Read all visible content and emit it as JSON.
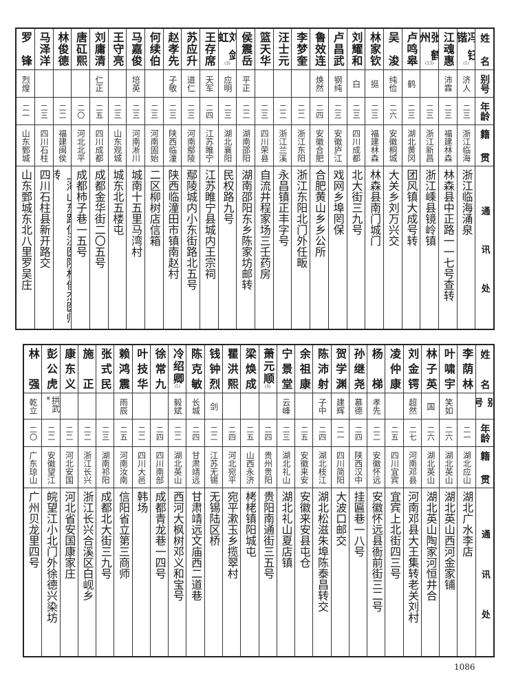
{
  "header": {
    "name": "姓名",
    "alias": "别号",
    "age": "年龄",
    "origin": "籍贯",
    "address": "通讯处"
  },
  "top_table": {
    "rows": [
      {
        "name": "冯钰锴",
        "note": "(1)",
        "alias": "济人",
        "age": "二三",
        "origin": "浙江临海",
        "address": "浙江临海涌泉"
      },
      {
        "name": "江魂惠",
        "alias": "沛霖",
        "age": "二三",
        "origin": "福建林森",
        "address": "林森县中正路一一七号查转"
      },
      {
        "name": "张鹤州",
        "note": "(13)",
        "alias": "",
        "age": "二三",
        "origin": "浙江新昌",
        "address": "浙江嵊县镜岭镇"
      },
      {
        "name": "卢鸣皋",
        "alias": "鹤",
        "age": "二三",
        "origin": "湖北黄冈",
        "address": "团风镇大成号转"
      },
      {
        "name": "吴浚",
        "alias": "纯俭",
        "age": "二六",
        "origin": "安徽桐城",
        "address": "大关乡刘万兴交"
      },
      {
        "name": "林家钦",
        "alias": "挺",
        "age": "二三",
        "origin": "福建林森",
        "address": "林森县南门城门"
      },
      {
        "name": "刘耀和",
        "alias": "白",
        "age": "二三",
        "origin": "四川成都",
        "address": "北大街三九号"
      },
      {
        "name": "卢昌武",
        "alias": "钢纯",
        "age": "二三",
        "origin": "安徽庐江",
        "address": "戏网乡埠罔保"
      },
      {
        "name": "鲁效连",
        "alias": "焕然",
        "age": "二四",
        "origin": "安徽合肥",
        "address": "合肥黄山乡乡公所"
      },
      {
        "name": "李梦奎",
        "alias": "",
        "age": "二二",
        "origin": "浙江东阳",
        "address": "浙江东阳北门外任畈"
      },
      {
        "name": "汪士元",
        "alias": "",
        "age": "二二",
        "origin": "浙江兰溪",
        "address": "永昌镇正丰字号"
      },
      {
        "name": "篮天华",
        "alias": "",
        "age": "二三",
        "origin": "四川荣县",
        "address": "自流井程家场三壬药房"
      },
      {
        "name": "侯震岳",
        "alias": "平正",
        "age": "二二",
        "origin": "湖南邵阳",
        "address": "湖南邵阳东乡陈家坊邮转"
      },
      {
        "name": "刘剑虹",
        "note": "(3)",
        "alias": "应明",
        "age": "二三",
        "origin": "湖北襄阳",
        "address": "民权路九号"
      },
      {
        "name": "王存席",
        "alias": "天军",
        "age": "二四",
        "origin": "江苏睢宁",
        "address": "江苏睢宁县城内王宗祠"
      },
      {
        "name": "苏应升",
        "alias": "道仁",
        "age": "二三",
        "origin": "河南鄢陵",
        "address": "鄢陵城内小东街路北五号"
      },
      {
        "name": "赵孝先",
        "alias": "子敬",
        "age": "二三",
        "origin": "陕西临潼",
        "address": "陕西临潼田市镇南赵村"
      },
      {
        "name": "何续伯",
        "alias": "",
        "age": "二三",
        "origin": "河南固始",
        "address": "二区柳树店信箱"
      },
      {
        "name": "马嘉俊",
        "alias": "培英",
        "age": "二三",
        "origin": "河南淅川",
        "address": "城南十五里马湾村"
      },
      {
        "name": "王守亮",
        "alias": "",
        "age": "二三",
        "origin": "山东观城",
        "address": "城东北五楼屯"
      },
      {
        "name": "刘庸清",
        "alias": "仁正",
        "age": "二五",
        "origin": "四川成都",
        "address": "成都金华街二〇五号"
      },
      {
        "name": "唐矼熙",
        "alias": "",
        "age": "二〇",
        "origin": "河北北平",
        "address": "成都柿子巷一五号"
      },
      {
        "name": "林俊德",
        "alias": "",
        "age": "二二",
        "origin": "福建闽侯",
        "address": "上海山东路仁济医院林俊杰医师转"
      },
      {
        "name": "马泽洋",
        "alias": "",
        "age": "二三",
        "origin": "四川石柱",
        "address": "四川石柱县新开路交"
      },
      {
        "name": "罗锋",
        "alias": "烈煌",
        "age": "二一",
        "origin": "山东鄄城",
        "address": "山东鄄城东北八里罗吴庄"
      }
    ]
  },
  "bottom_table": {
    "rows": [
      {
        "name": "李荫林",
        "alias": "",
        "age": "二一",
        "origin": "湖北应山",
        "address": "湖北广水李店"
      },
      {
        "name": "叶啸宇",
        "alias": "笑如",
        "age": "二六",
        "origin": "湖北英山",
        "address": "湖北英山西河金家铺"
      },
      {
        "name": "林子英",
        "alias": "国",
        "age": "二六",
        "origin": "湖北英山",
        "address": "湖北英山陶家河恒井合"
      },
      {
        "name": "刘金锷",
        "alias": "超然",
        "age": "二七",
        "origin": "河南邓县",
        "address": "河南邓县大王集转老关刘村"
      },
      {
        "name": "凌仲康",
        "alias": "",
        "age": "二五",
        "origin": "四川宜宾",
        "address": "宜宾上北街四三号"
      },
      {
        "name": "杨梯",
        "alias": "孝先",
        "age": "二二",
        "origin": "安徽怀远",
        "address": "安徽怀远县衙前街三二号"
      },
      {
        "name": "孙继尧",
        "alias": "慕德",
        "age": "二四",
        "origin": "陕西汉中",
        "address": "挂匾巷一八号"
      },
      {
        "name": "贺学渊",
        "alias": "建辉",
        "age": "二一",
        "origin": "四川简阳",
        "address": "大波口邮交"
      },
      {
        "name": "陈沛射",
        "alias": "子中",
        "age": "二四",
        "origin": "湖北枝江",
        "address": "湖北松滋朱埠陈泰昌转交"
      },
      {
        "name": "余祖康",
        "alias": "",
        "age": "二五",
        "origin": "安徽来安",
        "address": "安徽来安县屯仓"
      },
      {
        "name": "宁景堂",
        "alias": "云峰",
        "age": "二三",
        "origin": "湖北礼山",
        "address": "湖北礼山夏店镇"
      },
      {
        "name": "萧元顺",
        "note": "(8)",
        "alias": "",
        "age": "二四",
        "origin": "贵州贵阳",
        "address": "贵阳南通街三五号"
      },
      {
        "name": "梁焕成",
        "alias": "",
        "age": "二五",
        "origin": "山西永济",
        "address": "栲栳镇阳城屯"
      },
      {
        "name": "瞿洪熙",
        "alias": "",
        "age": "二四",
        "origin": "河北宛平",
        "address": "宛平漱玉乡揽翠村"
      },
      {
        "name": "钱钟烈",
        "alias": "剑",
        "age": "二二",
        "origin": "江苏无锡",
        "address": "无锡陆区桥"
      },
      {
        "name": "陈克敏",
        "alias": "长城",
        "age": "二四",
        "origin": "甘肃靖远",
        "address": "甘肃靖远文庙西二道巷"
      },
      {
        "name": "冷绍卿",
        "note": "(5)",
        "alias": "毅斌",
        "age": "二二",
        "origin": "湖北英山",
        "address": "西河大枫树邓义和宝号"
      },
      {
        "name": "徐常九",
        "alias": "",
        "age": "二四",
        "origin": "四川南部",
        "address": "成都青龙巷一四号"
      },
      {
        "name": "叶技华",
        "alias": "",
        "age": "二二",
        "origin": "四川大邑",
        "address": "韩场"
      },
      {
        "name": "赖鸿震",
        "alias": "雨辰",
        "age": "二五",
        "origin": "河南汝南",
        "address": "信阳省立第三商师"
      },
      {
        "name": "张式民",
        "alias": "",
        "age": "二三",
        "origin": "湖南祁阳",
        "address": "成都北大街三九号"
      },
      {
        "name": "施正",
        "alias": "",
        "age": "二二",
        "origin": "浙江长兴",
        "address": "浙江长兴合溪区白岘乡"
      },
      {
        "name": "康东义",
        "alias": "",
        "age": "二二",
        "origin": "河北安国",
        "address": "河北省安国康家庄"
      },
      {
        "name": "彭公虎",
        "alias": "拱武*",
        "age": "二二",
        "origin": "安徽望江",
        "address": "皖望江小北门外徐德兴染坊"
      },
      {
        "name": "林强",
        "alias": "乾立",
        "age": "二〇",
        "origin": "广东琼山",
        "address": "广州贝龙里四号"
      }
    ]
  },
  "page_number": "1086"
}
